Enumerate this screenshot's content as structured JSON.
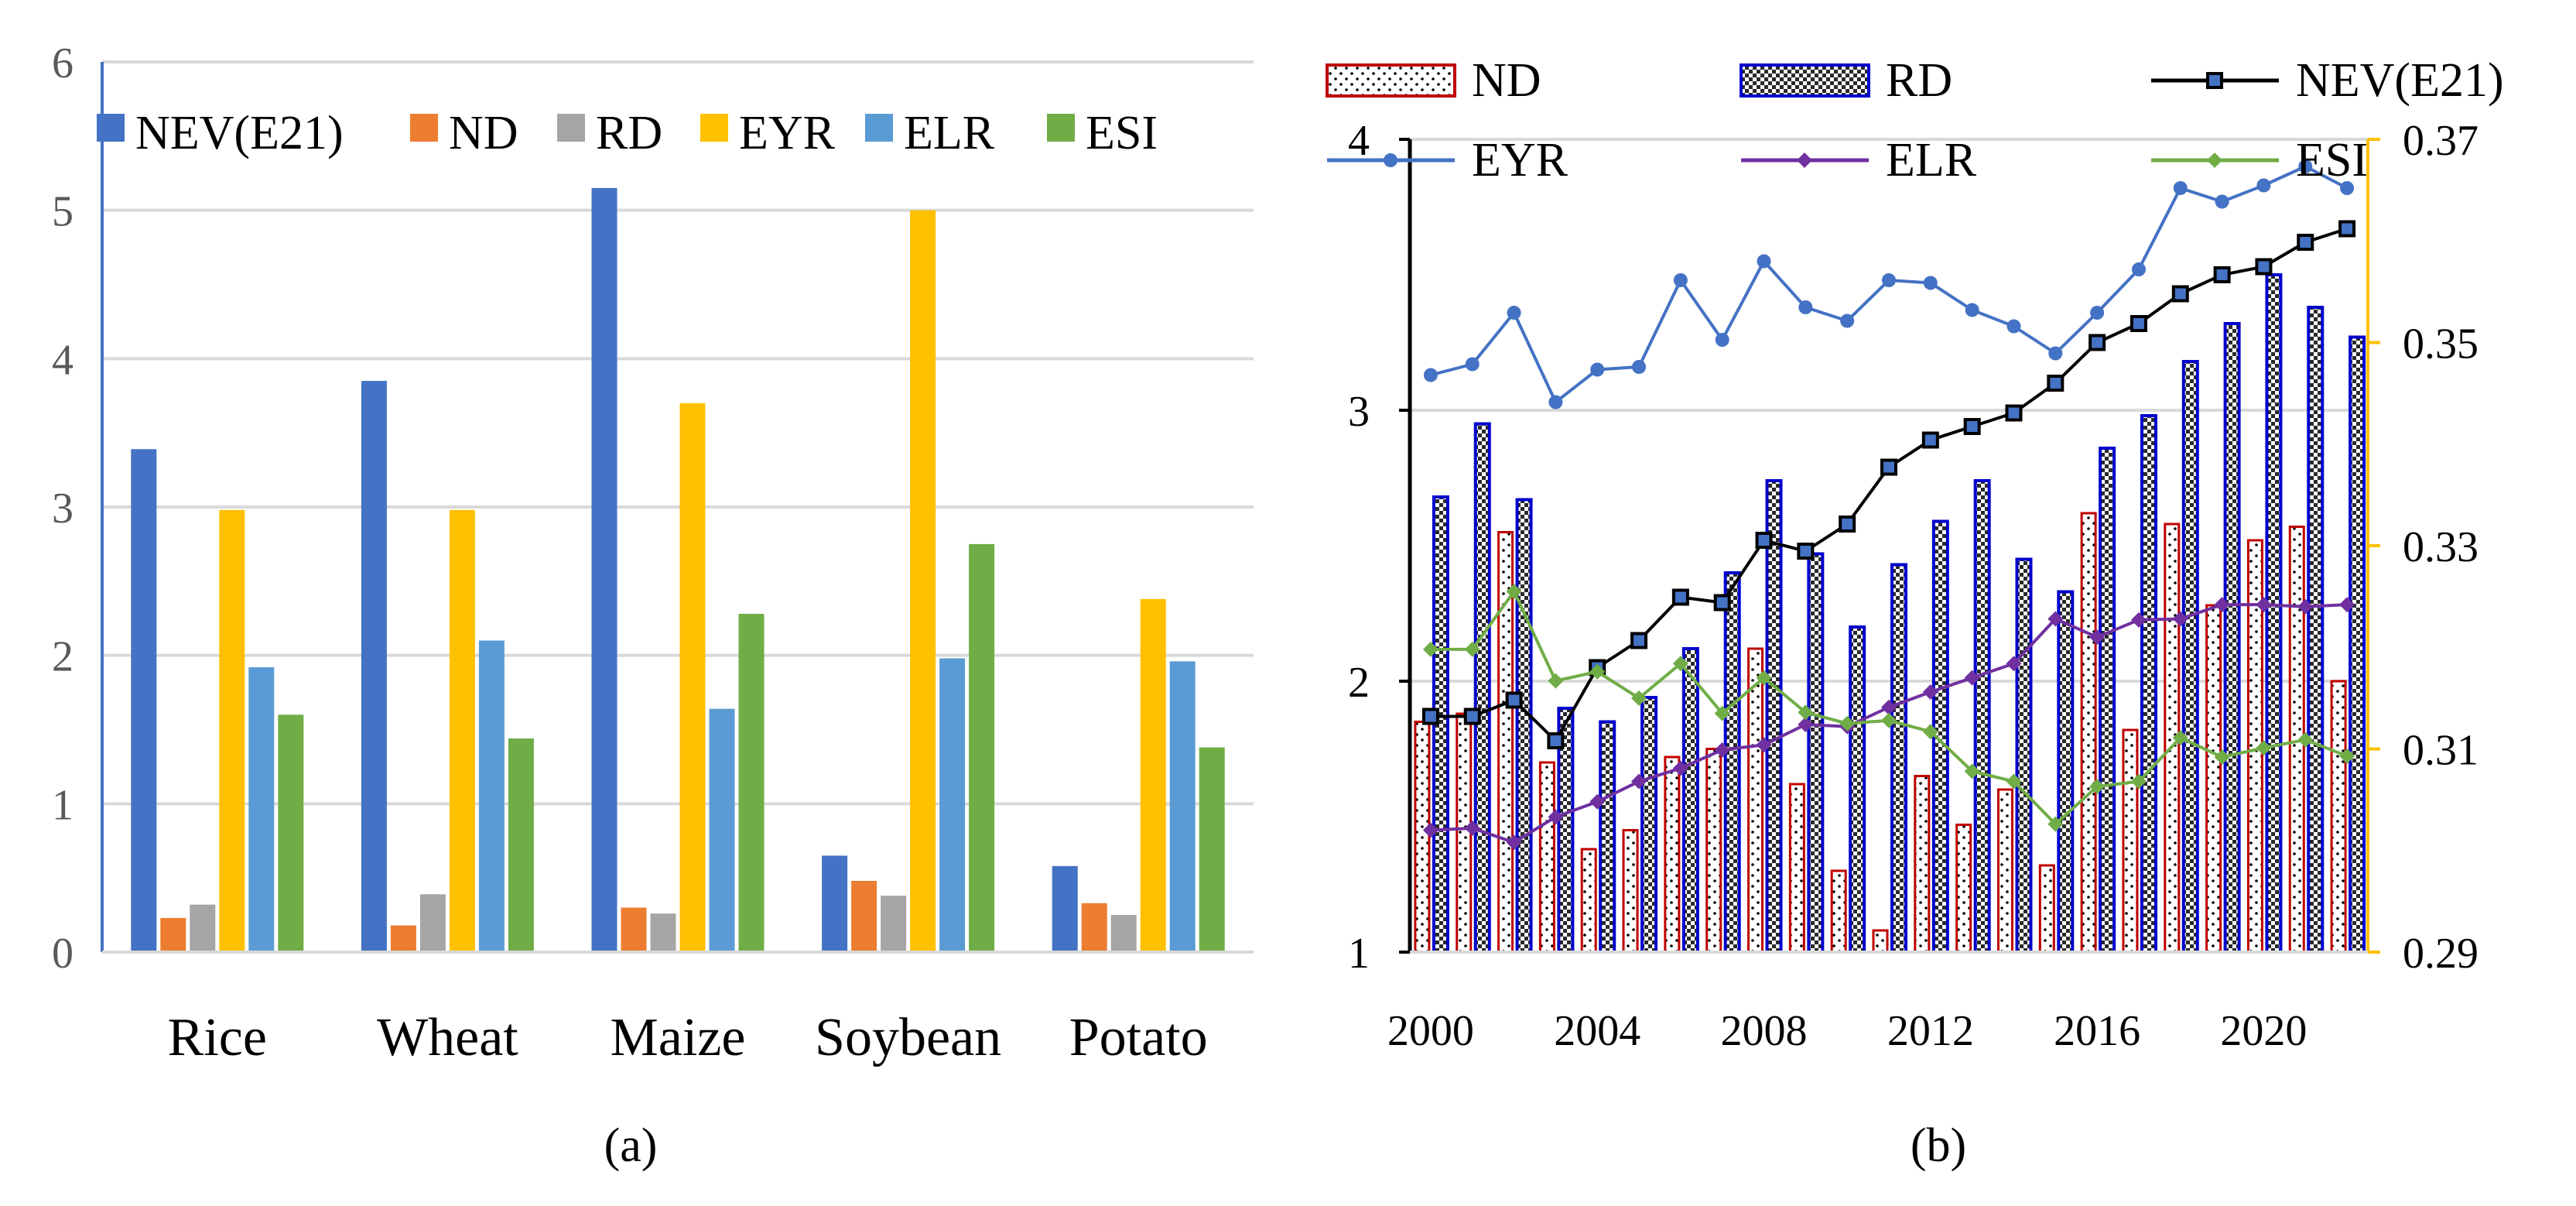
{
  "chart_data": [
    {
      "type": "bar",
      "panel_label": "(a)",
      "categories": [
        "Rice",
        "Wheat",
        "Maize",
        "Soybean",
        "Potato"
      ],
      "ylim": [
        0,
        6
      ],
      "yticks": [
        "0",
        "1",
        "2",
        "3",
        "4",
        "5",
        "6"
      ],
      "grid": true,
      "legend_position": "top",
      "series": [
        {
          "name": "NEV(E21)",
          "color": "#4472C4",
          "values": [
            3.39,
            3.85,
            5.15,
            0.65,
            0.58
          ]
        },
        {
          "name": "ND",
          "color": "#ED7D31",
          "values": [
            0.23,
            0.18,
            0.3,
            0.48,
            0.33
          ]
        },
        {
          "name": "RD",
          "color": "#A5A5A5",
          "values": [
            0.32,
            0.39,
            0.26,
            0.38,
            0.25
          ]
        },
        {
          "name": "EYR",
          "color": "#FFC000",
          "values": [
            2.98,
            2.98,
            3.7,
            5.0,
            2.38
          ]
        },
        {
          "name": "ELR",
          "color": "#5B9BD5",
          "values": [
            1.92,
            2.1,
            1.64,
            1.98,
            1.96
          ]
        },
        {
          "name": "ESI",
          "color": "#70AD47",
          "values": [
            1.6,
            1.44,
            2.28,
            2.75,
            1.38
          ]
        }
      ]
    },
    {
      "type": "bar+line",
      "panel_label": "(b)",
      "years": [
        2000,
        2001,
        2002,
        2003,
        2004,
        2005,
        2006,
        2007,
        2008,
        2009,
        2010,
        2011,
        2012,
        2013,
        2014,
        2015,
        2016,
        2017,
        2018,
        2019,
        2020,
        2021,
        2022
      ],
      "xticks": [
        "2000",
        "2004",
        "2008",
        "2012",
        "2016",
        "2020"
      ],
      "left_ylim": [
        1,
        4
      ],
      "left_yticks": [
        "1",
        "2",
        "3",
        "4"
      ],
      "right_ylim": [
        0.29,
        0.37
      ],
      "right_yticks": [
        "0.29",
        "0.31",
        "0.33",
        "0.35",
        "0.37"
      ],
      "grid": true,
      "legend_position": "top",
      "series": [
        {
          "name": "ND",
          "kind": "bar",
          "axis": "left",
          "color": "#C00000",
          "values": [
            1.85,
            1.88,
            2.55,
            1.7,
            1.38,
            1.45,
            1.72,
            1.75,
            2.12,
            1.62,
            1.3,
            1.08,
            1.65,
            1.47,
            1.6,
            1.32,
            2.62,
            1.82,
            2.58,
            2.28,
            2.52,
            2.57,
            2.0
          ]
        },
        {
          "name": "RD",
          "kind": "bar",
          "axis": "left",
          "color": "#0000CC",
          "values": [
            2.68,
            2.95,
            2.67,
            1.9,
            1.85,
            1.94,
            2.12,
            2.4,
            2.74,
            2.47,
            2.2,
            2.43,
            2.59,
            2.74,
            2.45,
            2.33,
            2.86,
            2.98,
            3.18,
            3.32,
            3.5,
            3.38,
            3.27
          ]
        },
        {
          "name": "NEV(E21)",
          "kind": "line",
          "axis": "left",
          "color": "#000000",
          "marker": "square",
          "values": [
            1.87,
            1.87,
            1.93,
            1.78,
            2.05,
            2.15,
            2.31,
            2.29,
            2.52,
            2.48,
            2.58,
            2.79,
            2.89,
            2.94,
            2.99,
            3.1,
            3.25,
            3.32,
            3.43,
            3.5,
            3.53,
            3.62,
            3.67
          ]
        },
        {
          "name": "EYR",
          "kind": "line",
          "axis": "left",
          "color": "#4472C4",
          "marker": "circle",
          "values": [
            3.13,
            3.17,
            3.36,
            3.03,
            3.15,
            3.16,
            3.48,
            3.26,
            3.55,
            3.38,
            3.33,
            3.48,
            3.47,
            3.37,
            3.31,
            3.21,
            3.36,
            3.52,
            3.82,
            3.77,
            3.83,
            3.9,
            3.82
          ]
        },
        {
          "name": "ELR",
          "kind": "line",
          "axis": "right",
          "color": "#7030A0",
          "marker": "diamond",
          "values": [
            0.302,
            0.3022,
            0.3008,
            0.3033,
            0.3048,
            0.3068,
            0.3081,
            0.3099,
            0.3104,
            0.3124,
            0.3122,
            0.3141,
            0.3156,
            0.317,
            0.3184,
            0.3228,
            0.321,
            0.3227,
            0.3228,
            0.3242,
            0.3242,
            0.324,
            0.3242
          ]
        },
        {
          "name": "ESI",
          "kind": "line",
          "axis": "right",
          "color": "#70AD47",
          "marker": "diamond",
          "values": [
            0.3198,
            0.3198,
            0.3255,
            0.3167,
            0.3176,
            0.315,
            0.3184,
            0.3135,
            0.317,
            0.3136,
            0.3125,
            0.3128,
            0.3117,
            0.3078,
            0.3068,
            0.3026,
            0.3063,
            0.3068,
            0.3111,
            0.3092,
            0.3101,
            0.3109,
            0.3093
          ]
        }
      ]
    }
  ]
}
